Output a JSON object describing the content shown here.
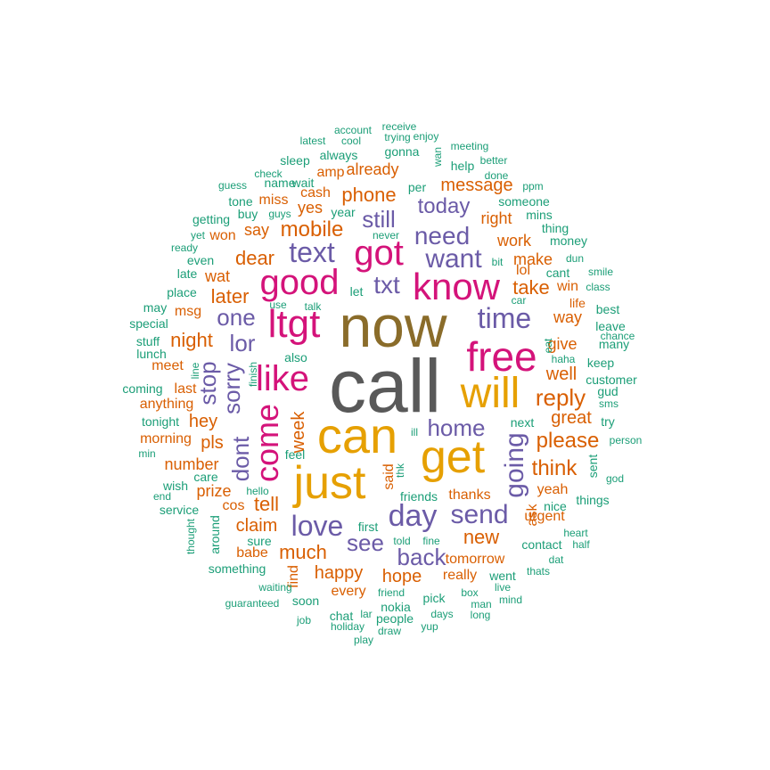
{
  "colors": {
    "teal": "#1b9e77",
    "orange": "#d95f02",
    "purple": "#6b5ba7",
    "magenta": "#d4137a",
    "olive": "#8a6c2a",
    "gold": "#e6a002",
    "gray": "#595959"
  },
  "words": [
    {
      "text": "call",
      "color": "gray"
    },
    {
      "text": "now",
      "color": "olive"
    },
    {
      "text": "can",
      "color": "gold"
    },
    {
      "text": "get",
      "color": "gold"
    },
    {
      "text": "will",
      "color": "gold"
    },
    {
      "text": "just",
      "color": "gold"
    },
    {
      "text": "free",
      "color": "magenta"
    },
    {
      "text": "know",
      "color": "magenta"
    },
    {
      "text": "got",
      "color": "magenta"
    },
    {
      "text": "good",
      "color": "magenta"
    },
    {
      "text": "ltgt",
      "color": "magenta"
    },
    {
      "text": "like",
      "color": "magenta"
    },
    {
      "text": "come",
      "color": "magenta"
    },
    {
      "text": "want",
      "color": "purple"
    },
    {
      "text": "need",
      "color": "purple"
    },
    {
      "text": "time",
      "color": "purple"
    },
    {
      "text": "text",
      "color": "purple"
    },
    {
      "text": "home",
      "color": "purple"
    },
    {
      "text": "day",
      "color": "purple"
    },
    {
      "text": "love",
      "color": "purple"
    },
    {
      "text": "send",
      "color": "purple"
    },
    {
      "text": "going",
      "color": "purple"
    },
    {
      "text": "back",
      "color": "purple"
    },
    {
      "text": "see",
      "color": "purple"
    },
    {
      "text": "one",
      "color": "purple"
    },
    {
      "text": "lor",
      "color": "purple"
    },
    {
      "text": "txt",
      "color": "purple"
    },
    {
      "text": "today",
      "color": "purple"
    },
    {
      "text": "still",
      "color": "purple"
    },
    {
      "text": "sorry",
      "color": "purple"
    },
    {
      "text": "stop",
      "color": "purple"
    },
    {
      "text": "dont",
      "color": "purple"
    },
    {
      "text": "mobile",
      "color": "orange"
    },
    {
      "text": "phone",
      "color": "orange"
    },
    {
      "text": "message",
      "color": "orange"
    },
    {
      "text": "reply",
      "color": "orange"
    },
    {
      "text": "please",
      "color": "orange"
    },
    {
      "text": "think",
      "color": "orange"
    },
    {
      "text": "new",
      "color": "orange"
    },
    {
      "text": "much",
      "color": "orange"
    },
    {
      "text": "claim",
      "color": "orange"
    },
    {
      "text": "tell",
      "color": "orange"
    },
    {
      "text": "take",
      "color": "orange"
    },
    {
      "text": "great",
      "color": "orange"
    },
    {
      "text": "later",
      "color": "orange"
    },
    {
      "text": "dear",
      "color": "orange"
    },
    {
      "text": "night",
      "color": "orange"
    },
    {
      "text": "well",
      "color": "orange"
    },
    {
      "text": "hope",
      "color": "orange"
    },
    {
      "text": "happy",
      "color": "orange"
    },
    {
      "text": "week",
      "color": "orange"
    },
    {
      "text": "yes",
      "color": "orange"
    },
    {
      "text": "amp",
      "color": "orange"
    },
    {
      "text": "already",
      "color": "orange"
    },
    {
      "text": "right",
      "color": "orange"
    },
    {
      "text": "work",
      "color": "orange"
    },
    {
      "text": "make",
      "color": "orange"
    },
    {
      "text": "way",
      "color": "orange"
    },
    {
      "text": "give",
      "color": "orange"
    },
    {
      "text": "hey",
      "color": "orange"
    },
    {
      "text": "pls",
      "color": "orange"
    },
    {
      "text": "number",
      "color": "orange"
    },
    {
      "text": "prize",
      "color": "orange"
    },
    {
      "text": "cos",
      "color": "orange"
    },
    {
      "text": "say",
      "color": "orange"
    },
    {
      "text": "wat",
      "color": "orange"
    },
    {
      "text": "msg",
      "color": "orange"
    },
    {
      "text": "miss",
      "color": "orange"
    },
    {
      "text": "cash",
      "color": "orange"
    },
    {
      "text": "won",
      "color": "orange"
    },
    {
      "text": "meet",
      "color": "orange"
    },
    {
      "text": "last",
      "color": "orange"
    },
    {
      "text": "anything",
      "color": "orange"
    },
    {
      "text": "morning",
      "color": "orange"
    },
    {
      "text": "babe",
      "color": "orange"
    },
    {
      "text": "thanks",
      "color": "orange"
    },
    {
      "text": "tomorrow",
      "color": "orange"
    },
    {
      "text": "really",
      "color": "orange"
    },
    {
      "text": "every",
      "color": "orange"
    },
    {
      "text": "yeah",
      "color": "orange"
    },
    {
      "text": "urgent",
      "color": "orange"
    },
    {
      "text": "lol",
      "color": "orange"
    },
    {
      "text": "win",
      "color": "orange"
    },
    {
      "text": "said",
      "color": "orange"
    },
    {
      "text": "ask",
      "color": "orange"
    },
    {
      "text": "find",
      "color": "orange"
    },
    {
      "text": "life",
      "color": "orange"
    },
    {
      "text": "account",
      "color": "teal"
    },
    {
      "text": "receive",
      "color": "teal"
    },
    {
      "text": "latest",
      "color": "teal"
    },
    {
      "text": "cool",
      "color": "teal"
    },
    {
      "text": "trying",
      "color": "teal"
    },
    {
      "text": "enjoy",
      "color": "teal"
    },
    {
      "text": "meeting",
      "color": "teal"
    },
    {
      "text": "wan",
      "color": "teal"
    },
    {
      "text": "better",
      "color": "teal"
    },
    {
      "text": "sleep",
      "color": "teal"
    },
    {
      "text": "always",
      "color": "teal"
    },
    {
      "text": "gonna",
      "color": "teal"
    },
    {
      "text": "help",
      "color": "teal"
    },
    {
      "text": "done",
      "color": "teal"
    },
    {
      "text": "check",
      "color": "teal"
    },
    {
      "text": "guess",
      "color": "teal"
    },
    {
      "text": "name",
      "color": "teal"
    },
    {
      "text": "wait",
      "color": "teal"
    },
    {
      "text": "per",
      "color": "teal"
    },
    {
      "text": "ppm",
      "color": "teal"
    },
    {
      "text": "tone",
      "color": "teal"
    },
    {
      "text": "someone",
      "color": "teal"
    },
    {
      "text": "buy",
      "color": "teal"
    },
    {
      "text": "guys",
      "color": "teal"
    },
    {
      "text": "year",
      "color": "teal"
    },
    {
      "text": "mins",
      "color": "teal"
    },
    {
      "text": "getting",
      "color": "teal"
    },
    {
      "text": "thing",
      "color": "teal"
    },
    {
      "text": "yet",
      "color": "teal"
    },
    {
      "text": "never",
      "color": "teal"
    },
    {
      "text": "money",
      "color": "teal"
    },
    {
      "text": "ready",
      "color": "teal"
    },
    {
      "text": "even",
      "color": "teal"
    },
    {
      "text": "bit",
      "color": "teal"
    },
    {
      "text": "dun",
      "color": "teal"
    },
    {
      "text": "late",
      "color": "teal"
    },
    {
      "text": "cant",
      "color": "teal"
    },
    {
      "text": "smile",
      "color": "teal"
    },
    {
      "text": "place",
      "color": "teal"
    },
    {
      "text": "let",
      "color": "teal"
    },
    {
      "text": "class",
      "color": "teal"
    },
    {
      "text": "use",
      "color": "teal"
    },
    {
      "text": "car",
      "color": "teal"
    },
    {
      "text": "may",
      "color": "teal"
    },
    {
      "text": "talk",
      "color": "teal"
    },
    {
      "text": "best",
      "color": "teal"
    },
    {
      "text": "special",
      "color": "teal"
    },
    {
      "text": "chance",
      "color": "teal"
    },
    {
      "text": "leave",
      "color": "teal"
    },
    {
      "text": "stuff",
      "color": "teal"
    },
    {
      "text": "many",
      "color": "teal"
    },
    {
      "text": "lunch",
      "color": "teal"
    },
    {
      "text": "eat",
      "color": "teal"
    },
    {
      "text": "also",
      "color": "teal"
    },
    {
      "text": "haha",
      "color": "teal"
    },
    {
      "text": "keep",
      "color": "teal"
    },
    {
      "text": "line",
      "color": "teal"
    },
    {
      "text": "finish",
      "color": "teal"
    },
    {
      "text": "customer",
      "color": "teal"
    },
    {
      "text": "coming",
      "color": "teal"
    },
    {
      "text": "gud",
      "color": "teal"
    },
    {
      "text": "sms",
      "color": "teal"
    },
    {
      "text": "tonight",
      "color": "teal"
    },
    {
      "text": "try",
      "color": "teal"
    },
    {
      "text": "next",
      "color": "teal"
    },
    {
      "text": "ill",
      "color": "teal"
    },
    {
      "text": "person",
      "color": "teal"
    },
    {
      "text": "min",
      "color": "teal"
    },
    {
      "text": "feel",
      "color": "teal"
    },
    {
      "text": "sent",
      "color": "teal"
    },
    {
      "text": "care",
      "color": "teal"
    },
    {
      "text": "wish",
      "color": "teal"
    },
    {
      "text": "god",
      "color": "teal"
    },
    {
      "text": "hello",
      "color": "teal"
    },
    {
      "text": "end",
      "color": "teal"
    },
    {
      "text": "friends",
      "color": "teal"
    },
    {
      "text": "thk",
      "color": "teal"
    },
    {
      "text": "things",
      "color": "teal"
    },
    {
      "text": "service",
      "color": "teal"
    },
    {
      "text": "nice",
      "color": "teal"
    },
    {
      "text": "first",
      "color": "teal"
    },
    {
      "text": "around",
      "color": "teal"
    },
    {
      "text": "heart",
      "color": "teal"
    },
    {
      "text": "thought",
      "color": "teal"
    },
    {
      "text": "sure",
      "color": "teal"
    },
    {
      "text": "told",
      "color": "teal"
    },
    {
      "text": "fine",
      "color": "teal"
    },
    {
      "text": "contact",
      "color": "teal"
    },
    {
      "text": "half",
      "color": "teal"
    },
    {
      "text": "dat",
      "color": "teal"
    },
    {
      "text": "something",
      "color": "teal"
    },
    {
      "text": "thats",
      "color": "teal"
    },
    {
      "text": "went",
      "color": "teal"
    },
    {
      "text": "waiting",
      "color": "teal"
    },
    {
      "text": "live",
      "color": "teal"
    },
    {
      "text": "friend",
      "color": "teal"
    },
    {
      "text": "pick",
      "color": "teal"
    },
    {
      "text": "box",
      "color": "teal"
    },
    {
      "text": "mind",
      "color": "teal"
    },
    {
      "text": "guaranteed",
      "color": "teal"
    },
    {
      "text": "soon",
      "color": "teal"
    },
    {
      "text": "nokia",
      "color": "teal"
    },
    {
      "text": "man",
      "color": "teal"
    },
    {
      "text": "chat",
      "color": "teal"
    },
    {
      "text": "lar",
      "color": "teal"
    },
    {
      "text": "people",
      "color": "teal"
    },
    {
      "text": "days",
      "color": "teal"
    },
    {
      "text": "long",
      "color": "teal"
    },
    {
      "text": "job",
      "color": "teal"
    },
    {
      "text": "holiday",
      "color": "teal"
    },
    {
      "text": "draw",
      "color": "teal"
    },
    {
      "text": "yup",
      "color": "teal"
    },
    {
      "text": "play",
      "color": "teal"
    }
  ]
}
